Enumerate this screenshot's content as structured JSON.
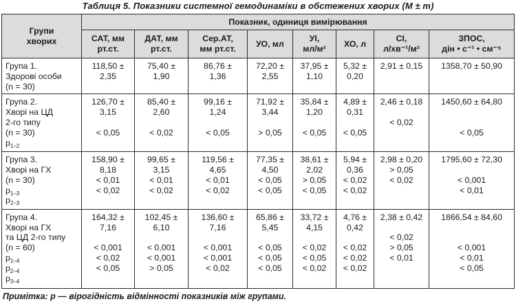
{
  "title": "Таблиця 5. Показники системної гемодинаміки в обстежених хворих (M ± m)",
  "header": {
    "group_col": [
      "Групи",
      "хворих"
    ],
    "indicators": "Показник, одиниця вимірювання",
    "columns": [
      {
        "lines": [
          "САТ, мм",
          "рт.ст."
        ]
      },
      {
        "lines": [
          "ДАТ, мм",
          "рт.ст."
        ]
      },
      {
        "lines": [
          "Сер.АТ,",
          "мм рт.ст."
        ]
      },
      {
        "lines": [
          "УО, мл"
        ]
      },
      {
        "lines": [
          "УІ,",
          "мл/м²"
        ]
      },
      {
        "lines": [
          "ХО, л"
        ]
      },
      {
        "lines": [
          "СІ,",
          "л/хв⁻¹/м²"
        ]
      },
      {
        "lines": [
          "ЗПОС,",
          "дін • с⁻¹ • см⁻⁵"
        ]
      }
    ]
  },
  "rows": [
    {
      "group": [
        "Група 1.",
        "Здорові особи",
        "(n = 30)"
      ],
      "cells": [
        [
          "118,50 ±",
          "2,35"
        ],
        [
          "75,40 ±",
          "1,90"
        ],
        [
          "86,76 ±",
          "1,36"
        ],
        [
          "72,20 ±",
          "2,55"
        ],
        [
          "37,95 ±",
          "1,10"
        ],
        [
          "5,32 ±",
          "0,20"
        ],
        [
          "2,91 ± 0,15"
        ],
        [
          "1358,70 ± 50,90"
        ]
      ]
    },
    {
      "group": [
        "Група 2.",
        "Хворі на ЦД",
        "2-го типу",
        "(n = 30)",
        "p1–2"
      ],
      "cells": [
        [
          "126,70 ±",
          "3,15",
          "",
          "< 0,05"
        ],
        [
          "85,40 ±",
          "2,60",
          "",
          "< 0,02"
        ],
        [
          "99,16 ±",
          "1,24",
          "",
          "< 0,05"
        ],
        [
          "71,92 ±",
          "3,44",
          "",
          "> 0,05"
        ],
        [
          "35,84 ±",
          "1,20",
          "",
          "< 0,05"
        ],
        [
          "4,89 ±",
          "0,31",
          "",
          "< 0,05"
        ],
        [
          "2,46 ± 0,18",
          "",
          "< 0,02",
          ""
        ],
        [
          "1450,60 ± 64,80",
          "",
          "",
          "< 0,05"
        ]
      ]
    },
    {
      "group": [
        "Група 3.",
        "Хворі на ГХ",
        "(n = 30)",
        "p1–3",
        "p2–3"
      ],
      "cells": [
        [
          "158,90 ±",
          "8,18",
          "< 0,01",
          "< 0,02"
        ],
        [
          "99,65 ±",
          "3,15",
          "< 0,01",
          "< 0,02"
        ],
        [
          "119,56 ±",
          "4,65",
          "< 0,01",
          "< 0,02"
        ],
        [
          "77,35 ±",
          "4,50",
          "< 0,05",
          "< 0,05"
        ],
        [
          "38,61 ±",
          "2,02",
          "> 0,05",
          "< 0,05"
        ],
        [
          "5,94 ±",
          "0,36",
          "< 0,02",
          "< 0,02"
        ],
        [
          "2,98 ± 0,20",
          "> 0,05",
          "< 0,02",
          ""
        ],
        [
          "1795,60 ± 72,30",
          "",
          "< 0,001",
          "< 0,01"
        ]
      ]
    },
    {
      "group": [
        "Група 4.",
        "Хворі на ГХ",
        "та ЦД 2-го типу",
        "(n = 60)",
        "p1–4",
        "p2–4",
        "p3–4"
      ],
      "cells": [
        [
          "164,32 ±",
          "7,16",
          "",
          "< 0,001",
          "< 0,02",
          "< 0,05"
        ],
        [
          "102,45 ±",
          "6,10",
          "",
          "< 0,001",
          "< 0,001",
          "> 0,05"
        ],
        [
          "136,60 ±",
          "7,16",
          "",
          "< 0,001",
          "< 0,001",
          "< 0,02"
        ],
        [
          "65,86 ±",
          "5,45",
          "",
          "< 0,05",
          "< 0,05",
          "< 0,05"
        ],
        [
          "33,72 ±",
          "4,15",
          "",
          "< 0,02",
          "< 0,05",
          "< 0,02"
        ],
        [
          "4,76 ±",
          "0,42",
          "",
          "< 0,02",
          "< 0,02",
          "< 0,02"
        ],
        [
          "2,38 ± 0,42",
          "",
          "< 0,02",
          "> 0,05",
          "< 0,01",
          ""
        ],
        [
          "1866,54 ± 84,60",
          "",
          "",
          "< 0,001",
          "< 0,01",
          "< 0,05"
        ]
      ]
    }
  ],
  "note": "Примітка: p — вірогідність відмінності показників між групами."
}
